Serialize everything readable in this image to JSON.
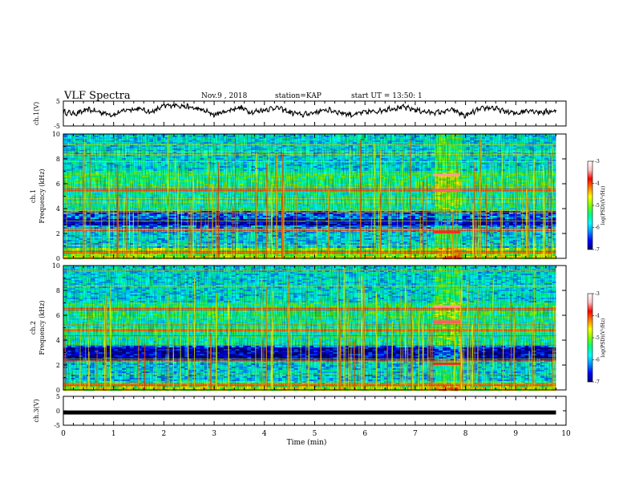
{
  "header": {
    "title": "VLF Spectra",
    "date": "Nov.9 , 2018",
    "station": "station=KAP",
    "start": "start UT = 13:50: 1"
  },
  "colors": {
    "background": "#ffffff",
    "trace": "#000000",
    "colormap": [
      "#00007a",
      "#0000ff",
      "#0090ff",
      "#00ffff",
      "#00ff80",
      "#80ff00",
      "#ffff00",
      "#ff8000",
      "#ff0000",
      "#ffc0c0",
      "#ffffff"
    ]
  },
  "chart_data": [
    {
      "type": "line",
      "panel": "ch1-waveform",
      "ylabel": "ch.1(V)",
      "ylim": [
        -5,
        5
      ],
      "yticks": [
        "5",
        "-5"
      ],
      "xlim": [
        0,
        10
      ],
      "description": "noisy waveform around 0 V",
      "x": [
        0,
        0.25,
        0.5,
        0.75,
        1.0,
        1.25,
        1.5,
        1.75,
        2.0,
        2.25,
        2.5,
        2.75,
        3.0,
        3.25,
        3.5,
        3.75,
        4.0,
        4.25,
        4.5,
        4.75,
        5.0,
        5.25,
        5.5,
        5.75,
        6.0,
        6.25,
        6.5,
        6.75,
        7.0,
        7.25,
        7.5,
        7.75,
        8.0,
        8.25,
        8.5,
        8.75,
        9.0,
        9.25,
        9.5,
        9.8
      ],
      "values": [
        0.5,
        0.0,
        1.5,
        0.5,
        -0.5,
        1.5,
        2.0,
        0.5,
        3.0,
        3.5,
        2.5,
        1.5,
        -0.5,
        1.0,
        2.5,
        0.5,
        1.5,
        2.5,
        0.5,
        -0.5,
        0.5,
        1.5,
        0.5,
        -0.5,
        0.5,
        1.0,
        2.0,
        2.5,
        1.5,
        0.5,
        0.5,
        1.5,
        -1.0,
        1.5,
        2.5,
        1.0,
        0.0,
        1.5,
        0.5,
        1.0
      ]
    },
    {
      "type": "heatmap",
      "panel": "ch1-spectrogram",
      "ylabel": "ch.1\nFrequency (kHz)",
      "ylim": [
        0,
        10
      ],
      "yticks": [
        "0",
        "2",
        "4",
        "6",
        "8",
        "10"
      ],
      "xlim": [
        0,
        10
      ],
      "colorbar": {
        "label": "log(PSD)(V²/Hz)",
        "range": [
          -7,
          -3
        ],
        "ticks": [
          "-3",
          "-4",
          "-5",
          "-6",
          "-7"
        ]
      },
      "features": {
        "dark_band_khz": [
          2.6,
          3.2
        ],
        "quiet_band_khz": [
          0.8,
          2.2
        ],
        "hiss_band_khz": [
          3.8,
          5.6
        ],
        "strong_line_khz": [
          0.5,
          2.3,
          5.5
        ],
        "event_min": [
          7.35,
          7.9
        ],
        "data_end_min": 9.8
      }
    },
    {
      "type": "heatmap",
      "panel": "ch2-spectrogram",
      "ylabel": "ch.2\nFrequency (kHz)",
      "ylim": [
        0,
        10
      ],
      "yticks": [
        "0",
        "2",
        "4",
        "6",
        "8",
        "10"
      ],
      "xlim": [
        0,
        10
      ],
      "colorbar": {
        "label": "log(PSD)(V²/Hz)",
        "range": [
          -7,
          -3
        ],
        "ticks": [
          "-3",
          "-4",
          "-5",
          "-6",
          "-7"
        ]
      },
      "features": {
        "dark_band_khz": [
          2.4,
          3.4
        ],
        "quiet_band_khz": [
          0.6,
          2.2
        ],
        "hiss_band_khz": [
          3.6,
          5.8
        ],
        "strong_line_khz": [
          0.4,
          4.8,
          6.5
        ],
        "event_min": [
          7.35,
          7.9
        ],
        "data_end_min": 9.8
      }
    },
    {
      "type": "line",
      "panel": "ch3-waveform",
      "ylabel": "ch.3(V)",
      "ylim": [
        -5,
        5
      ],
      "yticks": [
        "5",
        "0",
        "-5"
      ],
      "xlim": [
        0,
        10
      ],
      "xlabel": "Time (min)",
      "xticks": [
        "0",
        "1",
        "2",
        "3",
        "4",
        "5",
        "6",
        "7",
        "8",
        "9",
        "10"
      ],
      "x": [
        0,
        9.8
      ],
      "values": [
        -0.6,
        -0.6
      ]
    }
  ]
}
